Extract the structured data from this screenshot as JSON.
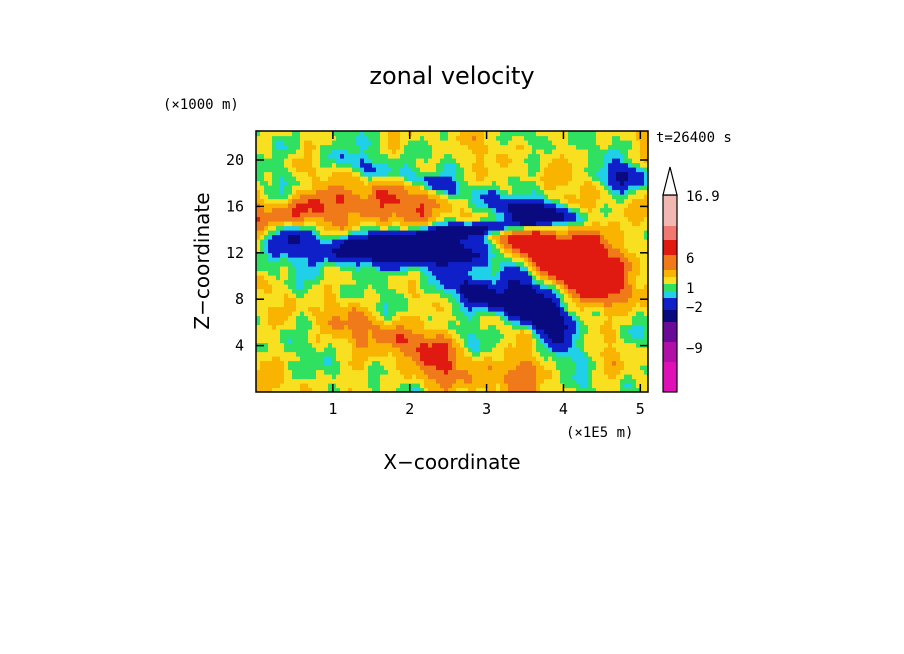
{
  "chart_data": {
    "type": "heatmap",
    "title": "zonal velocity",
    "xlabel": "X−coordinate",
    "ylabel": "Z−coordinate",
    "x_unit": "(×1E5 m)",
    "y_unit": "(×1000 m)",
    "time_label": "t=26400 s",
    "xlim": [
      0,
      5.1
    ],
    "ylim": [
      0,
      22.5
    ],
    "x_ticks": [
      1,
      2,
      3,
      4,
      5
    ],
    "y_ticks": [
      4,
      8,
      12,
      16,
      20
    ],
    "colorbar": {
      "labels": [
        "16.9",
        "6",
        "1",
        "−2",
        "−9"
      ],
      "levels_top_to_bottom": [
        {
          "color": "#f0b8b0"
        },
        {
          "color": "#f07870"
        },
        {
          "color": "#e01a10"
        },
        {
          "color": "#f07a1a"
        },
        {
          "color": "#f8b400"
        },
        {
          "color": "#f8e020"
        },
        {
          "color": "#30e060"
        },
        {
          "color": "#20d0e8"
        },
        {
          "color": "#1020c8"
        },
        {
          "color": "#0a0a80"
        },
        {
          "color": "#6a0a98"
        },
        {
          "color": "#b010a8"
        },
        {
          "color": "#e010b8"
        }
      ]
    },
    "field_colors": {
      "neg_strong": "#0a0a80",
      "neg": "#1020c8",
      "neg_weak": "#20d0e8",
      "zero": "#30e060",
      "pos_weak": "#f8e020",
      "pos": "#f8b400",
      "pos_mid": "#f07a1a",
      "pos_strong": "#e01a10"
    }
  }
}
